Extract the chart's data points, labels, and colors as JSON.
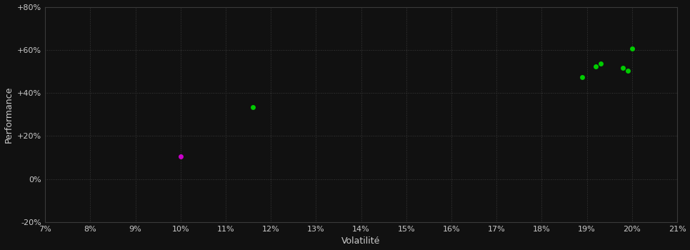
{
  "background_color": "#111111",
  "grid_color": "#3a3a3a",
  "text_color": "#cccccc",
  "xlabel": "Volatilité",
  "ylabel": "Performance",
  "xlim": [
    0.07,
    0.21
  ],
  "ylim": [
    -0.2,
    0.8
  ],
  "xticks": [
    0.07,
    0.08,
    0.09,
    0.1,
    0.11,
    0.12,
    0.13,
    0.14,
    0.15,
    0.16,
    0.17,
    0.18,
    0.19,
    0.2,
    0.21
  ],
  "yticks": [
    -0.2,
    0.0,
    0.2,
    0.4,
    0.6,
    0.8
  ],
  "ytick_labels": [
    "-20%",
    "0%",
    "+20%",
    "+40%",
    "+60%",
    "+80%"
  ],
  "green_points": [
    [
      0.116,
      0.335
    ],
    [
      0.2,
      0.605
    ],
    [
      0.193,
      0.535
    ],
    [
      0.192,
      0.522
    ],
    [
      0.198,
      0.515
    ],
    [
      0.199,
      0.503
    ],
    [
      0.189,
      0.472
    ]
  ],
  "magenta_points": [
    [
      0.1,
      0.105
    ]
  ],
  "green_color": "#00cc00",
  "magenta_color": "#cc00cc",
  "marker_size": 5
}
